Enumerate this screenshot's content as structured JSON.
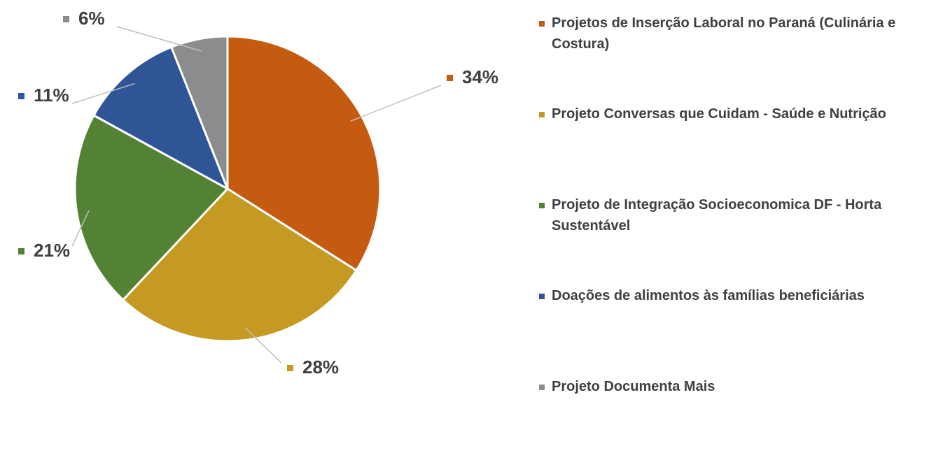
{
  "chart_data": {
    "type": "pie",
    "categories": [
      "Projetos de Inserção Laboral no Paraná (Culinária e Costura)",
      "Projeto Conversas que Cuidam - Saúde e Nutrição",
      "Projeto de Integração Socioeconomica DF - Horta Sustentável",
      "Doações de alimentos às famílias beneficiárias",
      "Projeto Documenta Mais"
    ],
    "values": [
      34,
      28,
      21,
      11,
      6
    ],
    "value_labels": [
      "34%",
      "28%",
      "21%",
      "11%",
      "6%"
    ],
    "colors": [
      "#c55a11",
      "#c49a22",
      "#548235",
      "#2f5597",
      "#8c8c8c"
    ],
    "legend": "right"
  }
}
